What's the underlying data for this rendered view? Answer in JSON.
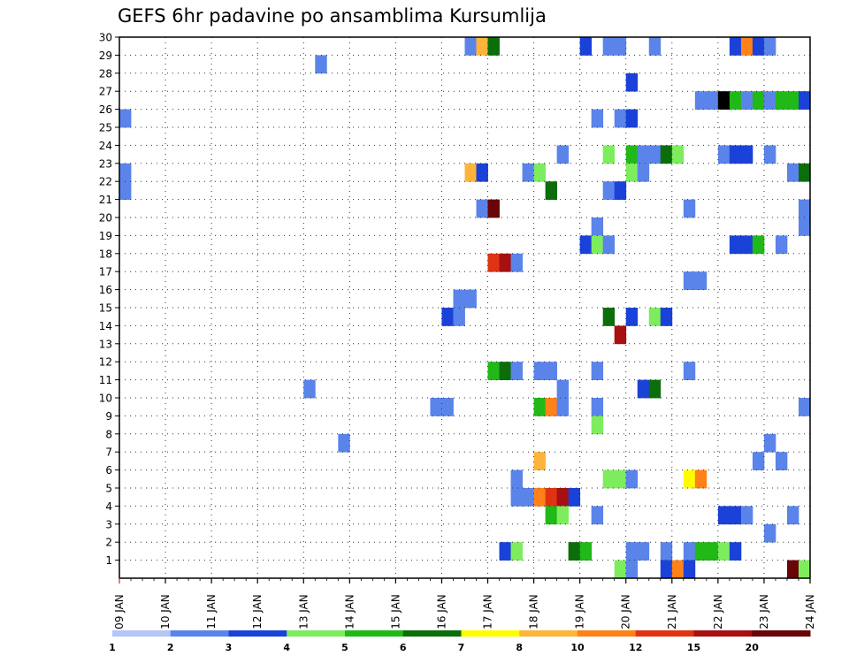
{
  "chart_data": {
    "type": "heatmap",
    "title": "GEFS 6hr padavine po ansamblima Kursumlija",
    "x_start_label": "09 JAN",
    "x_tick_labels": [
      "09 JAN",
      "10 JAN",
      "11 JAN",
      "12 JAN",
      "13 JAN",
      "14 JAN",
      "15 JAN",
      "16 JAN",
      "17 JAN",
      "18 JAN",
      "19 JAN",
      "20 JAN",
      "21 JAN",
      "22 JAN",
      "23 JAN",
      "24 JAN"
    ],
    "x_range_days": [
      0,
      15
    ],
    "steps_per_day": 4,
    "y_tick_labels": [
      "1",
      "2",
      "3",
      "4",
      "5",
      "6",
      "7",
      "8",
      "9",
      "10",
      "11",
      "12",
      "13",
      "14",
      "15",
      "16",
      "17",
      "18",
      "19",
      "20",
      "21",
      "22",
      "23",
      "24",
      "25",
      "26",
      "27",
      "28",
      "29",
      "30"
    ],
    "y_range": [
      0,
      30
    ],
    "grid": true,
    "colorbar": {
      "placement": "bottom",
      "labels": [
        "1",
        "2",
        "3",
        "4",
        "5",
        "6",
        "7",
        "8",
        "10",
        "12",
        "15",
        "20"
      ],
      "colors": [
        "#b4c6f7",
        "#5b84ea",
        "#1a42d9",
        "#7ded5e",
        "#20b917",
        "#0b6e0b",
        "#fffc00",
        "#fdb43a",
        "#fe8218",
        "#df3314",
        "#a70f10",
        "#690407"
      ]
    },
    "cells": [
      [
        30,
        30,
        1
      ],
      [
        30,
        31,
        7
      ],
      [
        30,
        32,
        5
      ],
      [
        30,
        40,
        2
      ],
      [
        30,
        42,
        1
      ],
      [
        30,
        43,
        1
      ],
      [
        30,
        46,
        1
      ],
      [
        30,
        53,
        2
      ],
      [
        30,
        54,
        8
      ],
      [
        30,
        55,
        2
      ],
      [
        30,
        56,
        1
      ],
      [
        29,
        17,
        1
      ],
      [
        28,
        44,
        2
      ],
      [
        27,
        50,
        1
      ],
      [
        27,
        51,
        1
      ],
      [
        27,
        52,
        12
      ],
      [
        27,
        53,
        4
      ],
      [
        27,
        54,
        1
      ],
      [
        27,
        55,
        4
      ],
      [
        27,
        56,
        1
      ],
      [
        27,
        57,
        4
      ],
      [
        27,
        58,
        4
      ],
      [
        27,
        59,
        2
      ],
      [
        26,
        0,
        1
      ],
      [
        26,
        41,
        1
      ],
      [
        26,
        43,
        1
      ],
      [
        26,
        44,
        2
      ],
      [
        24,
        38,
        1
      ],
      [
        24,
        42,
        3
      ],
      [
        24,
        44,
        4
      ],
      [
        24,
        45,
        1
      ],
      [
        24,
        46,
        1
      ],
      [
        24,
        47,
        5
      ],
      [
        24,
        48,
        3
      ],
      [
        24,
        52,
        1
      ],
      [
        24,
        53,
        2
      ],
      [
        24,
        54,
        2
      ],
      [
        24,
        56,
        1
      ],
      [
        23,
        0,
        1
      ],
      [
        23,
        30,
        7
      ],
      [
        23,
        31,
        2
      ],
      [
        23,
        35,
        1
      ],
      [
        23,
        36,
        3
      ],
      [
        23,
        44,
        3
      ],
      [
        23,
        45,
        1
      ],
      [
        23,
        58,
        1
      ],
      [
        23,
        59,
        5
      ],
      [
        22,
        0,
        1
      ],
      [
        22,
        37,
        5
      ],
      [
        22,
        42,
        1
      ],
      [
        22,
        43,
        2
      ],
      [
        21,
        31,
        1
      ],
      [
        21,
        32,
        11
      ],
      [
        21,
        49,
        1
      ],
      [
        21,
        59,
        1
      ],
      [
        20,
        41,
        1
      ],
      [
        20,
        59,
        1
      ],
      [
        19,
        40,
        2
      ],
      [
        19,
        41,
        3
      ],
      [
        19,
        42,
        1
      ],
      [
        19,
        53,
        2
      ],
      [
        19,
        54,
        2
      ],
      [
        19,
        55,
        4
      ],
      [
        19,
        57,
        1
      ],
      [
        18,
        32,
        9
      ],
      [
        18,
        33,
        10
      ],
      [
        18,
        34,
        1
      ],
      [
        17,
        49,
        1
      ],
      [
        17,
        50,
        1
      ],
      [
        16,
        29,
        1
      ],
      [
        16,
        30,
        1
      ],
      [
        15,
        28,
        2
      ],
      [
        15,
        29,
        1
      ],
      [
        15,
        42,
        5
      ],
      [
        15,
        44,
        2
      ],
      [
        15,
        46,
        3
      ],
      [
        15,
        47,
        2
      ],
      [
        14,
        43,
        10
      ],
      [
        12,
        32,
        4
      ],
      [
        12,
        33,
        5
      ],
      [
        12,
        34,
        1
      ],
      [
        12,
        36,
        1
      ],
      [
        12,
        37,
        1
      ],
      [
        12,
        41,
        1
      ],
      [
        12,
        49,
        1
      ],
      [
        11,
        38,
        1
      ],
      [
        11,
        45,
        2
      ],
      [
        11,
        46,
        5
      ],
      [
        11,
        16,
        1
      ],
      [
        10,
        27,
        1
      ],
      [
        10,
        28,
        1
      ],
      [
        10,
        36,
        4
      ],
      [
        10,
        37,
        8
      ],
      [
        10,
        38,
        1
      ],
      [
        10,
        41,
        1
      ],
      [
        10,
        59,
        1
      ],
      [
        9,
        41,
        3
      ],
      [
        8,
        19,
        1
      ],
      [
        8,
        56,
        1
      ],
      [
        7,
        36,
        7
      ],
      [
        7,
        55,
        1
      ],
      [
        7,
        57,
        1
      ],
      [
        6,
        34,
        1
      ],
      [
        6,
        42,
        3
      ],
      [
        6,
        43,
        3
      ],
      [
        6,
        44,
        1
      ],
      [
        6,
        49,
        6
      ],
      [
        6,
        50,
        8
      ],
      [
        5,
        34,
        1
      ],
      [
        5,
        35,
        1
      ],
      [
        5,
        36,
        8
      ],
      [
        5,
        37,
        9
      ],
      [
        5,
        38,
        10
      ],
      [
        5,
        39,
        2
      ],
      [
        4,
        37,
        4
      ],
      [
        4,
        38,
        3
      ],
      [
        4,
        41,
        1
      ],
      [
        4,
        52,
        2
      ],
      [
        4,
        53,
        2
      ],
      [
        4,
        54,
        1
      ],
      [
        4,
        58,
        1
      ],
      [
        3,
        56,
        1
      ],
      [
        2,
        33,
        2
      ],
      [
        2,
        34,
        3
      ],
      [
        2,
        39,
        5
      ],
      [
        2,
        40,
        4
      ],
      [
        2,
        44,
        1
      ],
      [
        2,
        45,
        1
      ],
      [
        2,
        47,
        1
      ],
      [
        2,
        49,
        1
      ],
      [
        2,
        50,
        4
      ],
      [
        2,
        51,
        4
      ],
      [
        2,
        52,
        3
      ],
      [
        2,
        53,
        2
      ],
      [
        1,
        43,
        3
      ],
      [
        1,
        44,
        1
      ],
      [
        1,
        47,
        2
      ],
      [
        1,
        48,
        8
      ],
      [
        1,
        49,
        2
      ],
      [
        1,
        58,
        11
      ],
      [
        1,
        59,
        3
      ]
    ]
  }
}
